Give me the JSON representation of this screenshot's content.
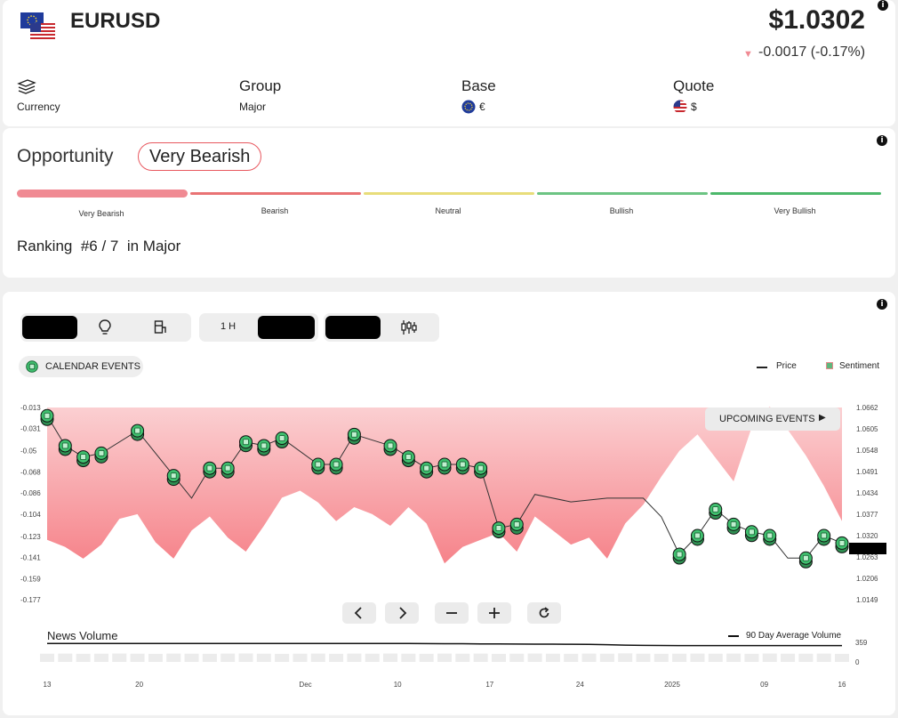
{
  "header": {
    "symbol": "EURUSD",
    "price": "$1.0302",
    "change": "-0.0017 (-0.17%)",
    "change_direction": "down"
  },
  "meta": {
    "type_label": "Currency",
    "group_title": "Group",
    "group_value": "Major",
    "base_title": "Base",
    "base_value": "€",
    "quote_title": "Quote",
    "quote_value": "$"
  },
  "opportunity": {
    "title": "Opportunity",
    "badge": "Very Bearish",
    "scale": [
      "Very Bearish",
      "Bearish",
      "Neutral",
      "Bullish",
      "Very Bullish"
    ],
    "scale_colors": [
      "#f08a93",
      "#e97374",
      "#e8dd7a",
      "#6cc483",
      "#4cb86b"
    ],
    "active_index": 0,
    "ranking_prefix": "Ranking",
    "ranking_value": "#6 / 7",
    "ranking_suffix": "in Major"
  },
  "toolbar": {
    "timeframe": "1 H",
    "calendar_events_label": "CALENDAR EVENTS",
    "legend_price": "Price",
    "legend_sentiment": "Sentiment",
    "upcoming_events": "UPCOMING EVENTS"
  },
  "colors": {
    "accent_red": "#e8585f",
    "event_green": "#3fbf6e",
    "sentiment_fill": "#f7a1a5"
  },
  "chart_data": {
    "type": "line",
    "left_axis_ticks": [
      "-0.013",
      "-0.031",
      "-0.05",
      "-0.068",
      "-0.086",
      "-0.104",
      "-0.123",
      "-0.141",
      "-0.159",
      "-0.177"
    ],
    "right_axis_ticks": [
      "1.0662",
      "1.0605",
      "1.0548",
      "1.0491",
      "1.0434",
      "1.0377",
      "1.0320",
      "1.0263",
      "1.0206",
      "1.0149"
    ],
    "x_ticks": [
      "13",
      "20",
      "Dec",
      "10",
      "17",
      "24",
      "2025",
      "09",
      "16"
    ],
    "news_title": "News Volume",
    "news_legend": "90 Day Average Volume",
    "news_ticks": [
      "359",
      "0"
    ],
    "price_series": [
      {
        "x": 0,
        "y": 1.064
      },
      {
        "x": 1,
        "y": 1.056
      },
      {
        "x": 2,
        "y": 1.053
      },
      {
        "x": 3,
        "y": 1.054
      },
      {
        "x": 5,
        "y": 1.06
      },
      {
        "x": 7,
        "y": 1.048
      },
      {
        "x": 8,
        "y": 1.042
      },
      {
        "x": 9,
        "y": 1.05
      },
      {
        "x": 10,
        "y": 1.05
      },
      {
        "x": 11,
        "y": 1.057
      },
      {
        "x": 12,
        "y": 1.056
      },
      {
        "x": 13,
        "y": 1.058
      },
      {
        "x": 15,
        "y": 1.051
      },
      {
        "x": 16,
        "y": 1.051
      },
      {
        "x": 17,
        "y": 1.059
      },
      {
        "x": 19,
        "y": 1.056
      },
      {
        "x": 20,
        "y": 1.053
      },
      {
        "x": 21,
        "y": 1.05
      },
      {
        "x": 22,
        "y": 1.051
      },
      {
        "x": 23,
        "y": 1.051
      },
      {
        "x": 24,
        "y": 1.05
      },
      {
        "x": 25,
        "y": 1.034
      },
      {
        "x": 26,
        "y": 1.035
      },
      {
        "x": 27,
        "y": 1.043
      },
      {
        "x": 29,
        "y": 1.041
      },
      {
        "x": 31,
        "y": 1.042
      },
      {
        "x": 33,
        "y": 1.042
      },
      {
        "x": 34,
        "y": 1.037
      },
      {
        "x": 35,
        "y": 1.027
      },
      {
        "x": 36,
        "y": 1.032
      },
      {
        "x": 37,
        "y": 1.039
      },
      {
        "x": 38,
        "y": 1.035
      },
      {
        "x": 39,
        "y": 1.033
      },
      {
        "x": 40,
        "y": 1.032
      },
      {
        "x": 41,
        "y": 1.026
      },
      {
        "x": 42,
        "y": 1.026
      },
      {
        "x": 43,
        "y": 1.032
      },
      {
        "x": 44,
        "y": 1.03
      }
    ],
    "event_points": [
      0,
      1,
      2,
      3,
      5,
      7,
      9,
      10,
      11,
      12,
      13,
      15,
      16,
      17,
      19,
      20,
      21,
      22,
      23,
      24,
      25,
      26,
      35,
      36,
      37,
      38,
      39,
      40,
      42,
      43,
      44
    ],
    "sentiment_lower": [
      -0.126,
      -0.132,
      -0.142,
      -0.13,
      -0.108,
      -0.104,
      -0.128,
      -0.142,
      -0.118,
      -0.106,
      -0.124,
      -0.136,
      -0.114,
      -0.09,
      -0.084,
      -0.094,
      -0.11,
      -0.098,
      -0.104,
      -0.114,
      -0.098,
      -0.112,
      -0.146,
      -0.132,
      -0.126,
      -0.12,
      -0.136,
      -0.106,
      -0.118,
      -0.13,
      -0.124,
      -0.142,
      -0.112,
      -0.096,
      -0.072,
      -0.05,
      -0.036,
      -0.056,
      -0.076,
      -0.03,
      -0.012,
      -0.032,
      -0.054,
      -0.08,
      -0.11
    ],
    "news_volume": [
      20,
      22,
      19,
      21,
      24,
      20,
      18,
      23,
      21,
      19,
      22,
      25,
      20,
      18,
      21,
      23,
      19,
      22,
      20,
      24,
      21,
      19,
      23,
      20,
      22,
      18,
      21,
      24,
      20,
      19,
      22,
      21,
      28,
      20,
      19,
      21,
      23,
      20,
      22,
      19,
      24,
      21,
      20,
      22,
      18
    ],
    "news_average": [
      340,
      340,
      340,
      340,
      340,
      340,
      340,
      340,
      340,
      340,
      340,
      340,
      340,
      340,
      340,
      340,
      340,
      340,
      340,
      340,
      340,
      336,
      334,
      334,
      332,
      330,
      328,
      326,
      326,
      324,
      322,
      316,
      308,
      304,
      302,
      300,
      300,
      300,
      300,
      300,
      300,
      300,
      300,
      300,
      300
    ]
  }
}
